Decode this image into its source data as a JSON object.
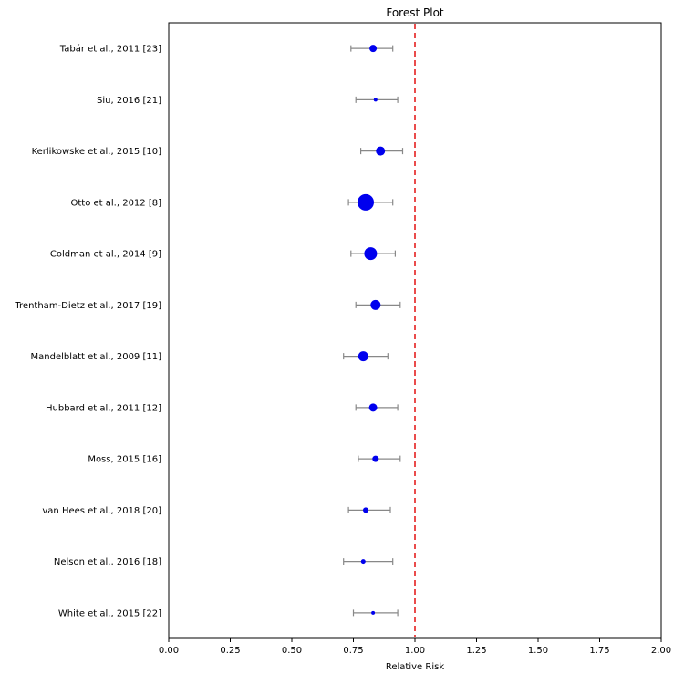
{
  "chart_data": {
    "type": "scatter",
    "variant": "forest-plot",
    "title": "Forest Plot",
    "xlabel": "Relative Risk",
    "ylabel": "",
    "xlim": [
      0.0,
      2.0
    ],
    "xticks": [
      0.0,
      0.25,
      0.5,
      0.75,
      1.0,
      1.25,
      1.5,
      1.75,
      2.0
    ],
    "grid": false,
    "reference_line": {
      "x": 1.0,
      "color": "#e00000",
      "style": "dashed"
    },
    "marker_color": "#0000ee",
    "ci_color": "#888888",
    "axis_color": "#000000",
    "studies": [
      {
        "label": "Tabár et al., 2011  [23]",
        "rr": 0.83,
        "ci_low": 0.74,
        "ci_high": 0.91,
        "marker_radius": 4
      },
      {
        "label": "Siu, 2016 [21]",
        "rr": 0.84,
        "ci_low": 0.76,
        "ci_high": 0.93,
        "marker_radius": 2
      },
      {
        "label": "Kerlikowske et al., 2015 [10]",
        "rr": 0.86,
        "ci_low": 0.78,
        "ci_high": 0.95,
        "marker_radius": 5
      },
      {
        "label": "Otto et al., 2012 [8]",
        "rr": 0.8,
        "ci_low": 0.73,
        "ci_high": 0.91,
        "marker_radius": 9
      },
      {
        "label": "Coldman et al., 2014 [9]",
        "rr": 0.82,
        "ci_low": 0.74,
        "ci_high": 0.92,
        "marker_radius": 7
      },
      {
        "label": "Trentham-Dietz et al., 2017 [19]",
        "rr": 0.84,
        "ci_low": 0.76,
        "ci_high": 0.94,
        "marker_radius": 5.5
      },
      {
        "label": "Mandelblatt et al., 2009 [11]",
        "rr": 0.79,
        "ci_low": 0.71,
        "ci_high": 0.89,
        "marker_radius": 5.5
      },
      {
        "label": "Hubbard et al., 2011 [12]",
        "rr": 0.83,
        "ci_low": 0.76,
        "ci_high": 0.93,
        "marker_radius": 4.5
      },
      {
        "label": "Moss, 2015 [16]",
        "rr": 0.84,
        "ci_low": 0.77,
        "ci_high": 0.94,
        "marker_radius": 3.5
      },
      {
        "label": "van Hees et al., 2018 [20]",
        "rr": 0.8,
        "ci_low": 0.73,
        "ci_high": 0.9,
        "marker_radius": 3
      },
      {
        "label": "Nelson et al., 2016 [18]",
        "rr": 0.79,
        "ci_low": 0.71,
        "ci_high": 0.91,
        "marker_radius": 2.5
      },
      {
        "label": "White et al., 2015 [22]",
        "rr": 0.83,
        "ci_low": 0.75,
        "ci_high": 0.93,
        "marker_radius": 2
      }
    ]
  },
  "layout_text": {
    "title": "Forest Plot",
    "xlabel": "Relative Risk"
  }
}
